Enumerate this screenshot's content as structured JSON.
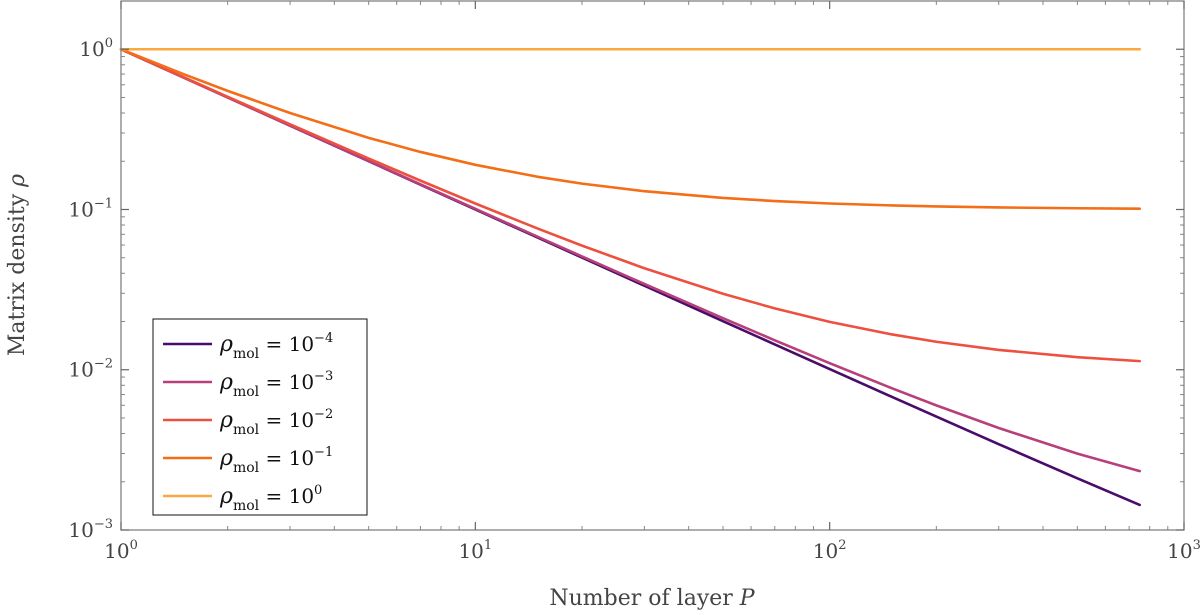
{
  "chart_data": {
    "type": "line",
    "xlabel_text": "Number of layer",
    "xlabel_var": "P",
    "ylabel_text": "Matrix density",
    "ylabel_var": "ρ",
    "x_scale": "log",
    "y_scale": "log",
    "xlim": [
      1,
      1000
    ],
    "ylim": [
      0.001,
      2.0
    ],
    "x_ticks": [
      {
        "value": 1,
        "mantissa": "10",
        "exp": "0"
      },
      {
        "value": 10,
        "mantissa": "10",
        "exp": "1"
      },
      {
        "value": 100,
        "mantissa": "10",
        "exp": "2"
      },
      {
        "value": 1000,
        "mantissa": "10",
        "exp": "3"
      }
    ],
    "y_ticks": [
      {
        "value": 1,
        "mantissa": "10",
        "exp": "0"
      },
      {
        "value": 0.1,
        "mantissa": "10",
        "exp": "−1"
      },
      {
        "value": 0.01,
        "mantissa": "10",
        "exp": "−2"
      },
      {
        "value": 0.001,
        "mantissa": "10",
        "exp": "−3"
      }
    ],
    "grid": false,
    "legend_position": "bottom-left",
    "x": [
      1,
      1.5,
      2,
      3,
      5,
      7,
      10,
      15,
      20,
      30,
      50,
      70,
      100,
      150,
      200,
      300,
      500,
      750
    ],
    "series": [
      {
        "name_base": "ρ",
        "name_sub": "mol",
        "name_eq": "= 10",
        "name_exp": "−4",
        "color": "#4a0c6b",
        "values": [
          1,
          0.6668,
          0.5001,
          0.3334,
          0.2001,
          0.1429,
          0.1001,
          0.06676,
          0.0501,
          0.03343,
          0.0201,
          0.01439,
          0.0101,
          0.006764,
          0.005099,
          0.003434,
          0.002101,
          0.001434
        ]
      },
      {
        "name_base": "ρ",
        "name_sub": "mol",
        "name_eq": "= 10",
        "name_exp": "−3",
        "color": "#b8407a",
        "values": [
          1,
          0.667,
          0.5005,
          0.334,
          0.2008,
          0.1437,
          0.1009,
          0.0676,
          0.05095,
          0.0343,
          0.02098,
          0.01527,
          0.01099,
          0.00766,
          0.005995,
          0.00433,
          0.002998,
          0.002332
        ]
      },
      {
        "name_base": "ρ",
        "name_sub": "mol",
        "name_eq": "= 10",
        "name_exp": "−2",
        "color": "#ee5040",
        "values": [
          1,
          0.67,
          0.505,
          0.34,
          0.208,
          0.1514,
          0.109,
          0.076,
          0.0595,
          0.043,
          0.0298,
          0.02414,
          0.0199,
          0.0166,
          0.01495,
          0.0133,
          0.01198,
          0.01132
        ]
      },
      {
        "name_base": "ρ",
        "name_sub": "mol",
        "name_eq": "= 10",
        "name_exp": "−1",
        "color": "#f36e16",
        "values": [
          1,
          0.7,
          0.55,
          0.4,
          0.28,
          0.2286,
          0.19,
          0.16,
          0.145,
          0.13,
          0.118,
          0.1129,
          0.109,
          0.106,
          0.1045,
          0.103,
          0.1018,
          0.1012
        ]
      },
      {
        "name_base": "ρ",
        "name_sub": "mol",
        "name_eq": "= 10",
        "name_exp": "0",
        "color": "#fba841",
        "values": [
          1,
          1,
          1,
          1,
          1,
          1,
          1,
          1,
          1,
          1,
          1,
          1,
          1,
          1,
          1,
          1,
          1,
          1
        ]
      }
    ]
  }
}
